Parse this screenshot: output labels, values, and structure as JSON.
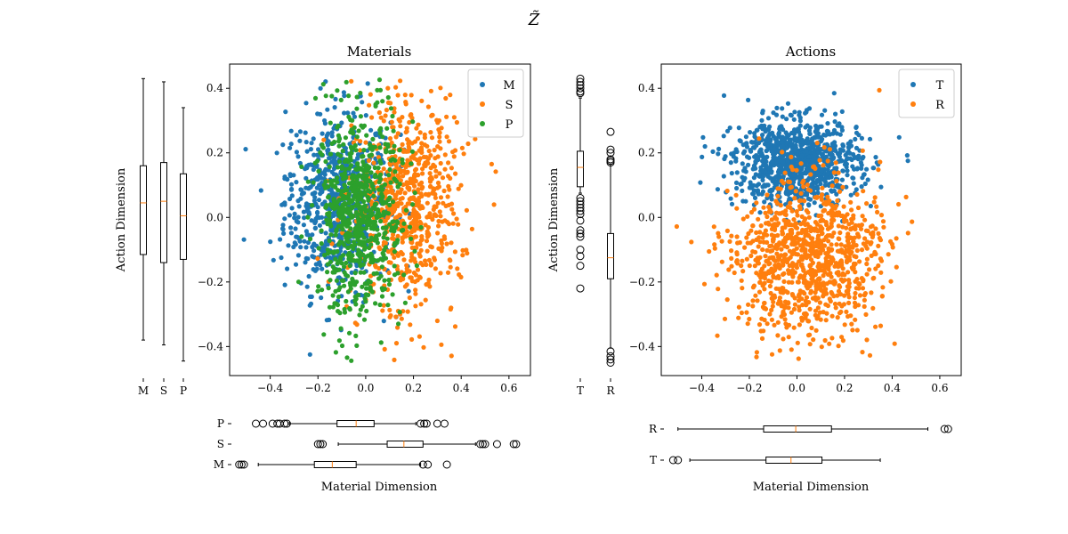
{
  "figure": {
    "suptitle": "Z̃"
  },
  "chart_data": [
    {
      "type": "scatter",
      "title": "Materials",
      "xlabel": "",
      "ylabel": "Action Dimension",
      "xlim": [
        -0.57,
        0.69
      ],
      "ylim": [
        -0.49,
        0.475
      ],
      "xticks": [
        "−0.4",
        "−0.2",
        "0.0",
        "0.2",
        "0.4",
        "0.6"
      ],
      "xtick_values": [
        -0.4,
        -0.2,
        0.0,
        0.2,
        0.4,
        0.6
      ],
      "yticks": [
        "−0.4",
        "−0.2",
        "0.0",
        "0.2",
        "0.4"
      ],
      "ytick_values": [
        -0.4,
        -0.2,
        0.0,
        0.2,
        0.4
      ],
      "grid": false,
      "legend": "top-right",
      "series": [
        {
          "name": "M",
          "color": "#1f77b4",
          "n": 700,
          "mx": -0.12,
          "sx": 0.11,
          "my": 0.05,
          "sy": 0.14
        },
        {
          "name": "S",
          "color": "#ff7f0e",
          "n": 700,
          "mx": 0.17,
          "sx": 0.11,
          "my": 0.05,
          "sy": 0.16
        },
        {
          "name": "P",
          "color": "#2ca02c",
          "n": 700,
          "mx": -0.03,
          "sx": 0.09,
          "my": 0.0,
          "sy": 0.15
        }
      ]
    },
    {
      "type": "scatter",
      "title": "Actions",
      "xlabel": "",
      "ylabel": "Action Dimension",
      "xlim": [
        -0.57,
        0.69
      ],
      "ylim": [
        -0.49,
        0.475
      ],
      "xticks": [
        "−0.4",
        "−0.2",
        "0.0",
        "0.2",
        "0.4",
        "0.6"
      ],
      "xtick_values": [
        -0.4,
        -0.2,
        0.0,
        0.2,
        0.4,
        0.6
      ],
      "yticks": [
        "−0.4",
        "−0.2",
        "0.0",
        "0.2",
        "0.4"
      ],
      "ytick_values": [
        -0.4,
        -0.2,
        0.0,
        0.2,
        0.4
      ],
      "grid": false,
      "legend": "top-right",
      "series": [
        {
          "name": "T",
          "color": "#1f77b4",
          "n": 1000,
          "mx": 0.0,
          "sx": 0.13,
          "my": 0.17,
          "sy": 0.065
        },
        {
          "name": "R",
          "color": "#ff7f0e",
          "n": 1000,
          "mx": 0.04,
          "sx": 0.16,
          "my": -0.12,
          "sy": 0.12
        }
      ]
    },
    {
      "type": "box",
      "orientation": "vertical",
      "label": "Action Dimension",
      "categories": [
        "M",
        "S",
        "P"
      ],
      "boxes": [
        {
          "name": "M",
          "whislo": -0.38,
          "q1": -0.115,
          "med": 0.045,
          "q3": 0.16,
          "whishi": 0.43,
          "fliers": []
        },
        {
          "name": "S",
          "whislo": -0.395,
          "q1": -0.14,
          "med": 0.05,
          "q3": 0.17,
          "whishi": 0.42,
          "fliers": []
        },
        {
          "name": "P",
          "whislo": -0.445,
          "q1": -0.13,
          "med": 0.005,
          "q3": 0.135,
          "whishi": 0.34,
          "fliers": []
        }
      ]
    },
    {
      "type": "box",
      "orientation": "vertical",
      "label": "Action Dimension",
      "categories": [
        "T",
        "R"
      ],
      "boxes": [
        {
          "name": "T",
          "whislo": 0.075,
          "q1": 0.095,
          "med": 0.155,
          "q3": 0.205,
          "whishi": 0.37,
          "fliers": [
            0.43,
            0.42,
            0.41,
            0.4,
            0.39,
            0.385,
            0.06,
            0.05,
            0.04,
            0.03,
            0.02,
            0.01,
            -0.01,
            -0.04,
            -0.05,
            -0.06,
            -0.1,
            -0.12,
            -0.15,
            -0.22
          ]
        },
        {
          "name": "R",
          "whislo": -0.405,
          "q1": -0.19,
          "med": -0.125,
          "q3": -0.05,
          "whishi": 0.165,
          "fliers": [
            0.265,
            0.21,
            0.2,
            0.18,
            0.175,
            0.17,
            -0.415,
            -0.43,
            -0.44,
            -0.45
          ]
        }
      ]
    },
    {
      "type": "box",
      "orientation": "horizontal",
      "label": "Material Dimension",
      "categories": [
        "M",
        "S",
        "P"
      ],
      "boxes": [
        {
          "name": "M",
          "whislo": -0.45,
          "q1": -0.215,
          "med": -0.14,
          "q3": -0.04,
          "whishi": 0.23,
          "fliers": [
            -0.51,
            -0.52,
            -0.53,
            0.24,
            0.26,
            0.34
          ]
        },
        {
          "name": "S",
          "whislo": -0.115,
          "q1": 0.09,
          "med": 0.16,
          "q3": 0.24,
          "whishi": 0.46,
          "fliers": [
            -0.2,
            -0.19,
            -0.18,
            0.48,
            0.49,
            0.5,
            0.55,
            0.62,
            0.63
          ]
        },
        {
          "name": "P",
          "whislo": -0.32,
          "q1": -0.12,
          "med": -0.04,
          "q3": 0.035,
          "whishi": 0.21,
          "fliers": [
            -0.46,
            -0.43,
            -0.39,
            -0.37,
            -0.36,
            -0.34,
            -0.33,
            0.23,
            0.245,
            0.255,
            0.3,
            0.33
          ]
        }
      ]
    },
    {
      "type": "box",
      "orientation": "horizontal",
      "label": "Material Dimension",
      "categories": [
        "T",
        "R"
      ],
      "boxes": [
        {
          "name": "T",
          "whislo": -0.45,
          "q1": -0.13,
          "med": -0.025,
          "q3": 0.105,
          "whishi": 0.35,
          "fliers": [
            -0.52,
            -0.5
          ]
        },
        {
          "name": "R",
          "whislo": -0.5,
          "q1": -0.14,
          "med": -0.005,
          "q3": 0.145,
          "whishi": 0.55,
          "fliers": [
            0.62,
            0.635
          ]
        }
      ]
    }
  ]
}
